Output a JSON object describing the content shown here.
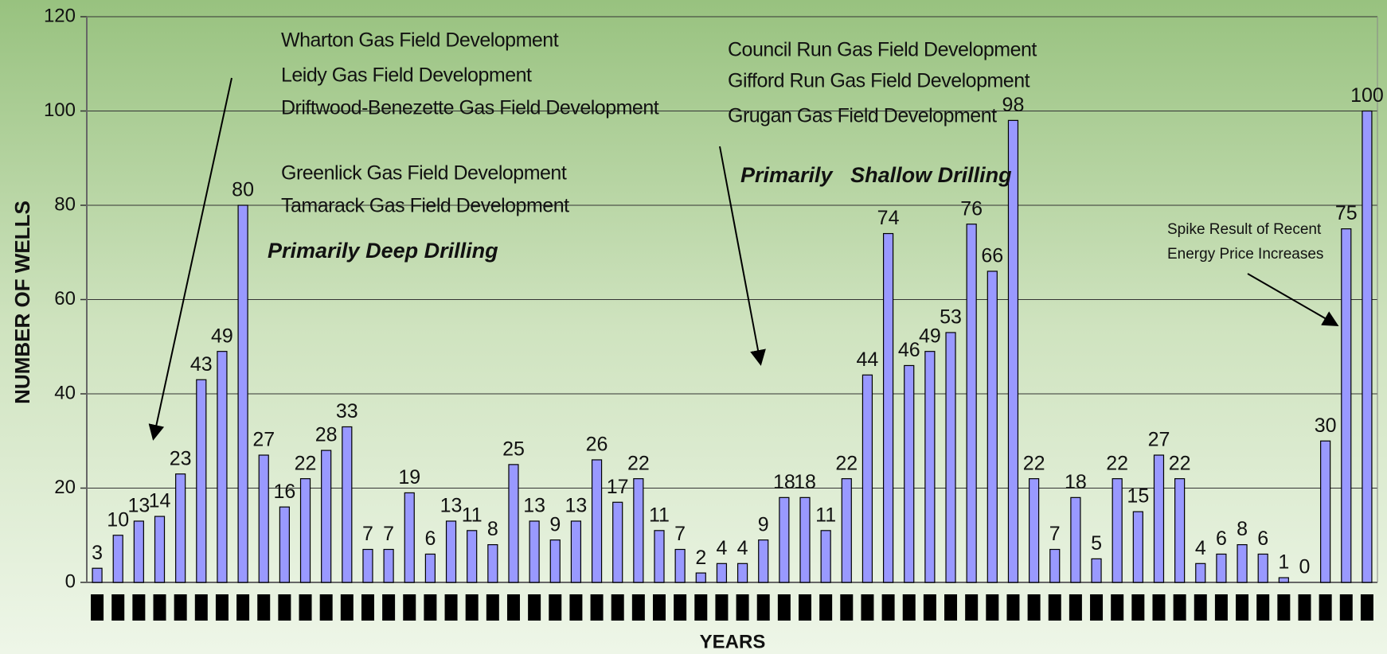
{
  "chart_data": {
    "type": "bar",
    "xlabel": "YEARS",
    "ylabel": "NUMBER OF WELLS",
    "categories": [
      null,
      null,
      null,
      null,
      null,
      null,
      null,
      null,
      null,
      null,
      null,
      null,
      null,
      null,
      null,
      null,
      null,
      null,
      null,
      null,
      null,
      null,
      null,
      null,
      null,
      null,
      null,
      null,
      null,
      null,
      null,
      null,
      null,
      null,
      null,
      null,
      null,
      null,
      null,
      null,
      null,
      null,
      null,
      null,
      null,
      null,
      null,
      null,
      null,
      null,
      null,
      null,
      null,
      null,
      null,
      null,
      null,
      null,
      null,
      null,
      null,
      null
    ],
    "values": [
      3,
      10,
      13,
      14,
      23,
      43,
      49,
      80,
      27,
      16,
      22,
      28,
      33,
      7,
      7,
      19,
      6,
      13,
      11,
      8,
      25,
      13,
      9,
      13,
      26,
      17,
      22,
      11,
      7,
      2,
      4,
      4,
      9,
      18,
      18,
      11,
      22,
      44,
      74,
      46,
      49,
      53,
      76,
      66,
      98,
      22,
      7,
      18,
      5,
      22,
      15,
      27,
      22,
      4,
      6,
      8,
      6,
      1,
      0,
      30,
      75,
      100
    ],
    "color": "#9999ff",
    "ylim": [
      0,
      120
    ],
    "yticks": [
      0,
      20,
      40,
      60,
      80,
      100,
      120
    ],
    "grid": true,
    "annotations": [
      "Wharton Gas Field Development",
      "Leidy Gas Field Development",
      "Driftwood-Benezette Gas Field Development",
      "Greenlick Gas Field Development",
      "Tamarack Gas Field Development",
      "Primarily Deep Drilling",
      "Council Run Gas Field Development",
      "Gifford Run Gas Field Development",
      "Grugan Gas Field Development",
      "Primarily   Shallow Drilling",
      "Spike Result of Recent",
      "Energy Price Increases"
    ]
  }
}
